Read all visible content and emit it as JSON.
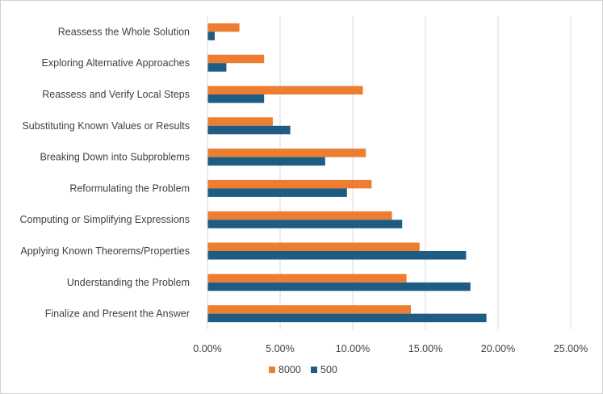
{
  "chart_data": {
    "type": "bar",
    "orientation": "horizontal",
    "categories": [
      "Reassess the Whole Solution",
      "Exploring Alternative Approaches",
      "Reassess and Verify Local Steps",
      "Substituting Known Values or Results",
      "Breaking Down into Subproblems",
      "Reformulating the Problem",
      "Computing or Simplifying Expressions",
      "Applying Known Theorems/Properties",
      "Understanding the Problem",
      "Finalize and Present the Answer"
    ],
    "series": [
      {
        "name": "8000",
        "color": "#ED7D31",
        "values": [
          2.2,
          3.9,
          10.7,
          4.5,
          10.9,
          11.3,
          12.7,
          14.6,
          13.7,
          14.0
        ]
      },
      {
        "name": "500",
        "color": "#1F5C84",
        "values": [
          0.5,
          1.3,
          3.9,
          5.7,
          8.1,
          9.6,
          13.4,
          17.8,
          18.1,
          19.2
        ]
      }
    ],
    "xlim": [
      0,
      25
    ],
    "xticks": [
      "0.00%",
      "5.00%",
      "10.00%",
      "15.00%",
      "20.00%",
      "25.00%"
    ],
    "grid": true,
    "legend_position": "bottom",
    "title": "",
    "xlabel": "",
    "ylabel": ""
  }
}
